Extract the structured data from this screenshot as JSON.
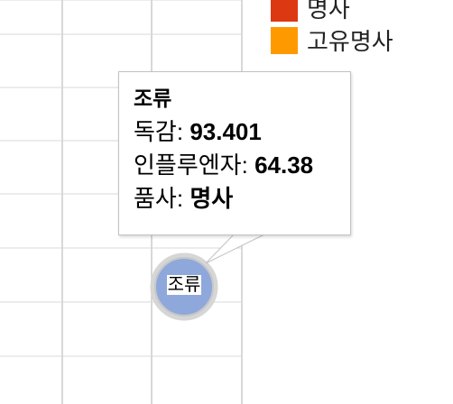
{
  "chart_data": {
    "type": "bubble",
    "legend": [
      {
        "label": "명사",
        "color": "#dc3912"
      },
      {
        "label": "고유명사",
        "color": "#ff9900"
      }
    ],
    "points": [
      {
        "label": "조류",
        "x": 93.401,
        "y": 64.38,
        "category": "명사",
        "color": "#8fa8dc"
      }
    ]
  },
  "tooltip": {
    "title": "조류",
    "rows": [
      {
        "label": "독감:",
        "value": "93.401"
      },
      {
        "label": "인플루엔자:",
        "value": "64.38"
      },
      {
        "label": "품사:",
        "value": "명사"
      }
    ]
  },
  "bubble_label": "조류"
}
